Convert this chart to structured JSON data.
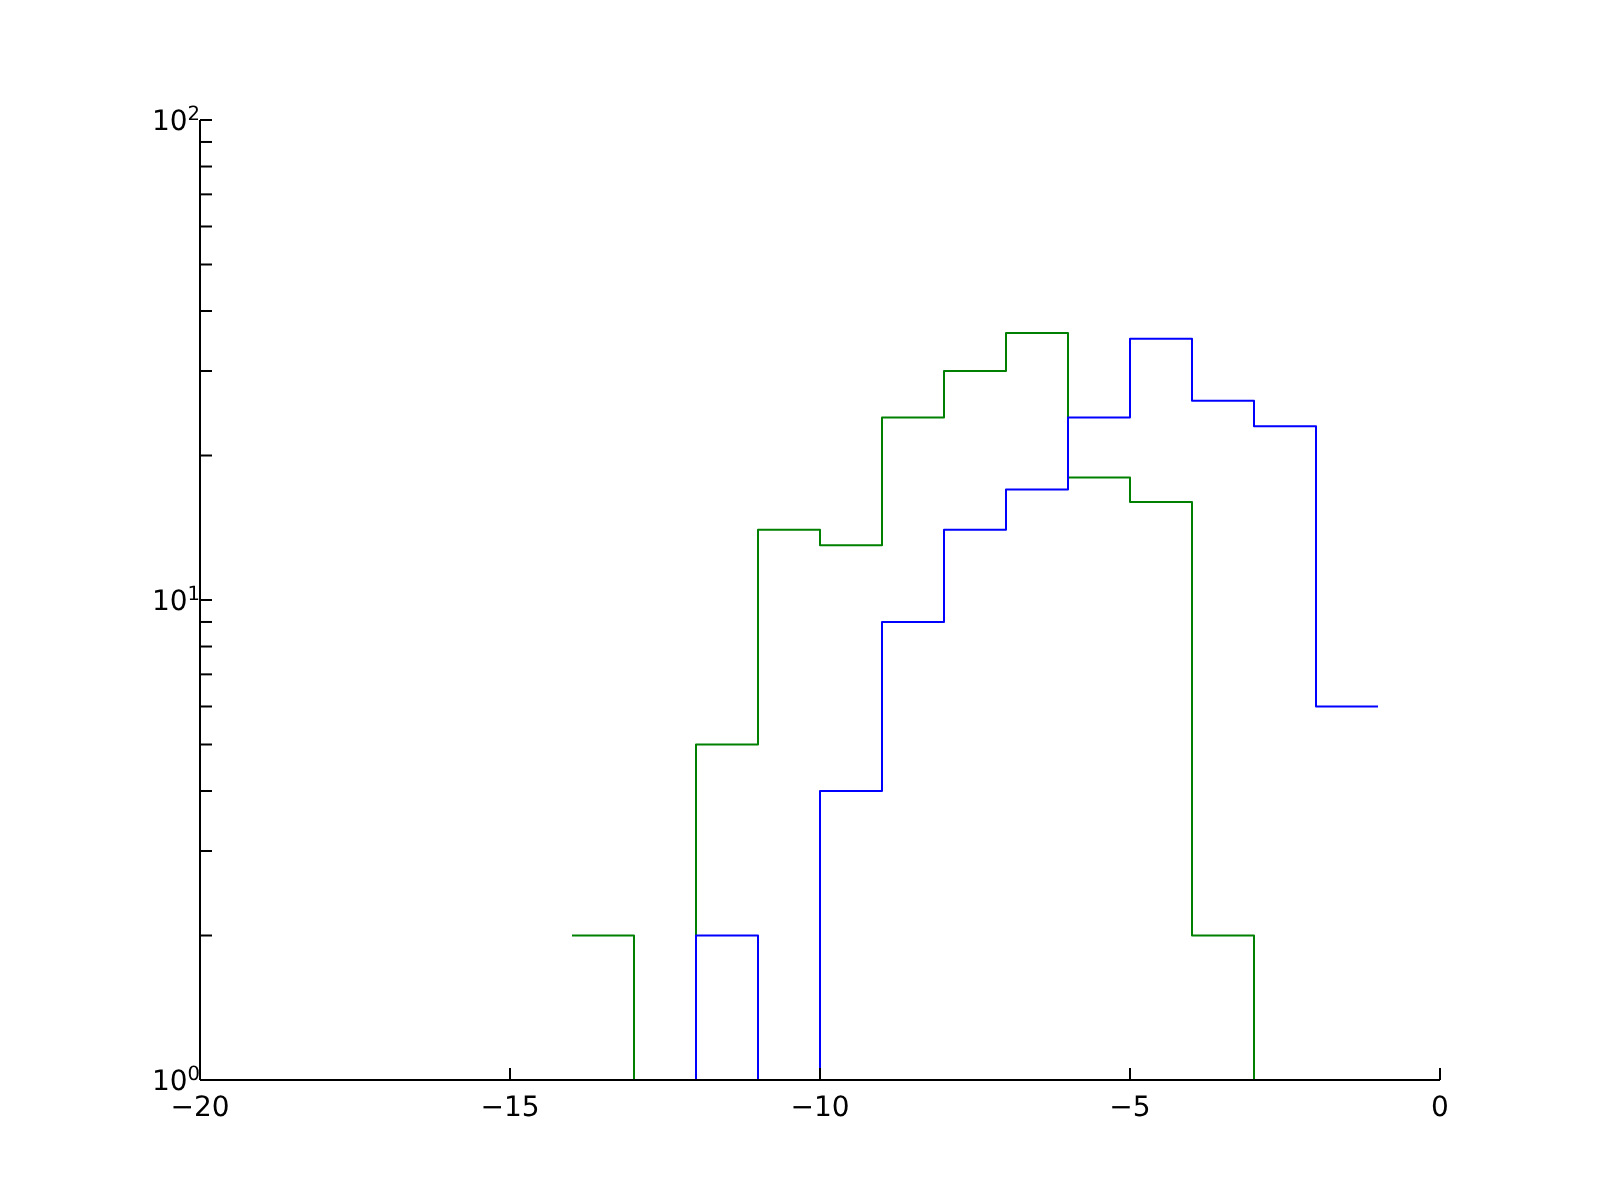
{
  "chart_data": {
    "type": "histogram",
    "bins": [
      -14,
      -13,
      -12,
      -11,
      -10,
      -9,
      -8,
      -7,
      -6,
      -5,
      -4,
      -3,
      -2,
      -1
    ],
    "series": [
      {
        "color": "#008000",
        "values": [
          2,
          1,
          5,
          14,
          13,
          24,
          30,
          36,
          18,
          16,
          2,
          1,
          1
        ]
      },
      {
        "color": "#0000ff",
        "values": [
          1,
          1,
          2,
          1,
          4,
          9,
          14,
          17,
          24,
          35,
          26,
          23,
          6
        ]
      }
    ],
    "xlim": [
      -20,
      0
    ],
    "xticks": [
      {
        "value": -20,
        "label": "−20"
      },
      {
        "value": -15,
        "label": "−15"
      },
      {
        "value": -10,
        "label": "−10"
      },
      {
        "value": -5,
        "label": "−5"
      },
      0
    ],
    "ylim": [
      1,
      100
    ],
    "yticks": [
      {
        "value": 1,
        "label": "10$^{0}$"
      },
      {
        "value": 2,
        "label": null
      },
      {
        "value": 3,
        "label": null
      },
      {
        "value": 4,
        "label": null
      },
      {
        "value": 5,
        "label": null
      },
      {
        "value": 6,
        "label": null
      },
      {
        "value": 7,
        "label": null
      },
      {
        "value": 8,
        "label": null
      },
      {
        "value": 9,
        "label": null
      },
      {
        "value": 10,
        "label": "10$^{1}$"
      },
      {
        "value": 20,
        "label": null
      },
      {
        "value": 30,
        "label": null
      },
      {
        "value": 40,
        "label": null
      },
      {
        "value": 50,
        "label": null
      },
      {
        "value": 60,
        "label": null
      },
      {
        "value": 70,
        "label": null
      },
      {
        "value": 80,
        "label": null
      },
      {
        "value": 90,
        "label": null
      },
      {
        "value": 100,
        "label": "10$^{2}$"
      }
    ],
    "log": true
  }
}
